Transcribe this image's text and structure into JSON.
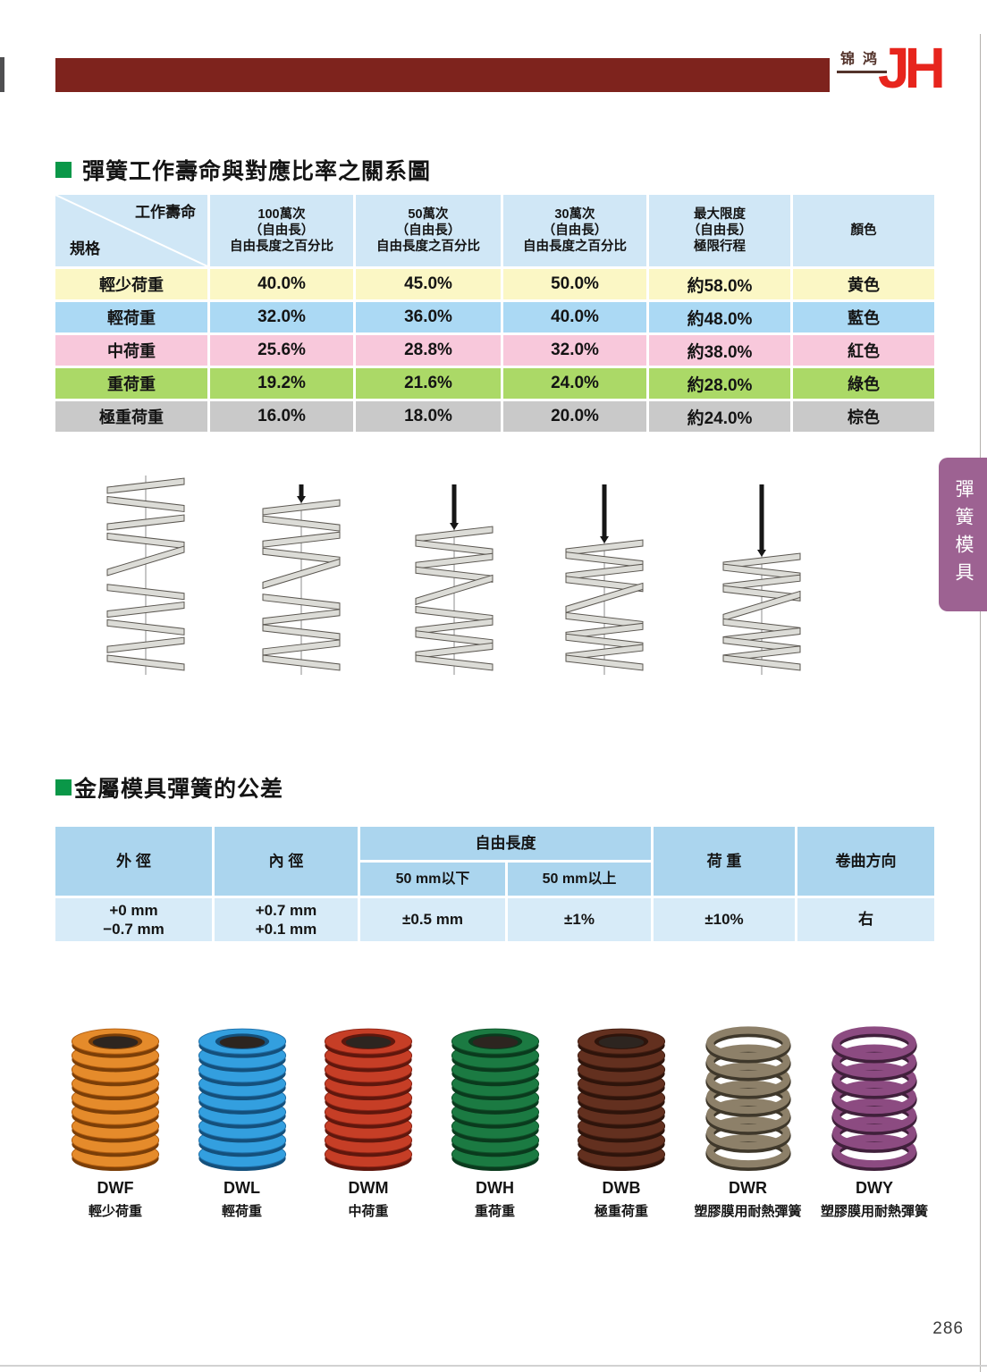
{
  "page": {
    "number": "286"
  },
  "header": {
    "brand_cn": "锦鸿",
    "brand_logo": "JH",
    "bar_color": "#7e231d",
    "logo_color": "#e7251d",
    "brand_text_color": "#53332b",
    "edge_mark_color": "#4f4f51"
  },
  "accent": {
    "green_square": "#0a9748"
  },
  "side_tab": {
    "label": "彈簧模具",
    "bg": "#9d6292"
  },
  "section1": {
    "title": "彈簧工作壽命與對應比率之關系圖",
    "table": {
      "header_bg": "#d0e7f6",
      "corner_top": "工作壽命",
      "corner_bottom": "規格",
      "columns": [
        "100萬次\n（自由長）\n自由長度之百分比",
        "50萬次\n（自由長）\n自由長度之百分比",
        "30萬次\n（自由長）\n自由長度之百分比",
        "最大限度\n（自由長）\n極限行程",
        "顏色"
      ],
      "rows": [
        {
          "label": "輕少荷重",
          "values": [
            "40.0%",
            "45.0%",
            "50.0%",
            "約58.0%"
          ],
          "color_name": "黄色",
          "bg": "#fbf7c5"
        },
        {
          "label": "輕荷重",
          "values": [
            "32.0%",
            "36.0%",
            "40.0%",
            "約48.0%"
          ],
          "color_name": "藍色",
          "bg": "#abd9f4"
        },
        {
          "label": "中荷重",
          "values": [
            "25.6%",
            "28.8%",
            "32.0%",
            "約38.0%"
          ],
          "color_name": "紅色",
          "bg": "#f8c8db"
        },
        {
          "label": "重荷重",
          "values": [
            "19.2%",
            "21.6%",
            "24.0%",
            "約28.0%"
          ],
          "color_name": "綠色",
          "bg": "#abd967"
        },
        {
          "label": "極重荷重",
          "values": [
            "16.0%",
            "18.0%",
            "20.0%",
            "約24.0%"
          ],
          "color_name": "棕色",
          "bg": "#c9c9c9"
        }
      ]
    }
  },
  "section2": {
    "title": "金屬模具彈簧的公差",
    "table": {
      "header_bg": "#abd5ee",
      "row_bg": "#d7ebf8",
      "col_outer": "外 徑",
      "col_inner": "內 徑",
      "col_free": "自由長度",
      "sub_below": "50 mm以下",
      "sub_above": "50 mm以上",
      "col_load": "荷 重",
      "col_dir": "卷曲方向",
      "row": {
        "outer": "+0 mm\n−0.7 mm",
        "inner": "+0.7 mm\n+0.1 mm",
        "below": "±0.5 mm",
        "above": "±1%",
        "load": "±10%",
        "dir": "右"
      }
    }
  },
  "products": [
    {
      "model": "DWF",
      "desc": "輕少荷重",
      "wire": "flat",
      "color": "#e58b2b",
      "dark": "#b05c0f",
      "darker": "#7a3e08"
    },
    {
      "model": "DWL",
      "desc": "輕荷重",
      "wire": "flat",
      "color": "#339fdf",
      "dark": "#1f6fa8",
      "darker": "#14507c"
    },
    {
      "model": "DWM",
      "desc": "中荷重",
      "wire": "flat",
      "color": "#c63e26",
      "dark": "#8c2315",
      "darker": "#5f170d"
    },
    {
      "model": "DWH",
      "desc": "重荷重",
      "wire": "flat",
      "color": "#1b7a42",
      "dark": "#0f5129",
      "darker": "#0a3a1d"
    },
    {
      "model": "DWB",
      "desc": "極重荷重",
      "wire": "flat",
      "color": "#63301f",
      "dark": "#431e12",
      "darker": "#2e140b"
    },
    {
      "model": "DWR",
      "desc": "塑膠膜用耐熱彈簧",
      "wire": "round",
      "color": "#8d8069",
      "dark": "#5c5240",
      "darker": "#3f382b"
    },
    {
      "model": "DWY",
      "desc": "塑膠膜用耐熱彈簧",
      "wire": "round",
      "color": "#8c4b81",
      "dark": "#5e2f56",
      "darker": "#40203b"
    }
  ]
}
